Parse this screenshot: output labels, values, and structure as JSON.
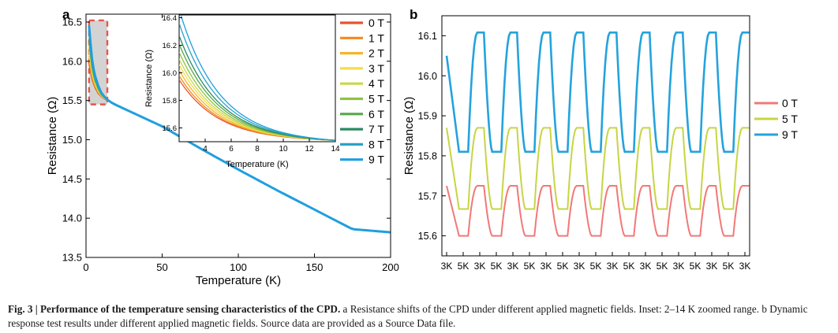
{
  "colors": {
    "0 T": "#e8532e",
    "1 T": "#f28a1d",
    "2 T": "#f4b62a",
    "3 T": "#f1dd4b",
    "4 T": "#c9d848",
    "5 T": "#8fc244",
    "6 T": "#55a848",
    "7 T": "#2c8a60",
    "8 T": "#29a4c8",
    "9 T": "#1f9fde",
    "b_0T": "#f27878",
    "b_5T": "#c6d544",
    "b_9T": "#24a3dc",
    "highlight": "#e8564a"
  },
  "chart_data": [
    {
      "panel": "a",
      "type": "line",
      "xlabel": "Temperature (K)",
      "ylabel": "Resistance (Ω)",
      "xlim": [
        0,
        200
      ],
      "ylim": [
        13.5,
        16.6
      ],
      "xticks": [
        "0",
        "50",
        "100",
        "150",
        "200"
      ],
      "yticks": [
        "13.5",
        "14.0",
        "14.5",
        "15.0",
        "15.5",
        "16.0",
        "16.5"
      ],
      "legend": [
        "0 T",
        "1 T",
        "2 T",
        "3 T",
        "4 T",
        "5 T",
        "6 T",
        "7 T",
        "8 T",
        "9 T"
      ],
      "legend_position": "top-right",
      "highlight_box": {
        "x_range": [
          2,
          14
        ],
        "y_range": [
          15.45,
          16.52
        ]
      },
      "curve": {
        "x": [
          2,
          3,
          4,
          5,
          6,
          8,
          10,
          12,
          14,
          17,
          20,
          30,
          50,
          75,
          100,
          125,
          150,
          175,
          200
        ],
        "y_0T": [
          15.96,
          15.86,
          15.77,
          15.71,
          15.66,
          15.59,
          15.55,
          15.52,
          15.5,
          15.47,
          15.44,
          15.35,
          15.17,
          14.89,
          14.62,
          14.36,
          14.11,
          13.86,
          13.82
        ],
        "y_9T": [
          16.45,
          16.22,
          16.02,
          15.9,
          15.81,
          15.69,
          15.6,
          15.55,
          15.51,
          15.47,
          15.44,
          15.35,
          15.17,
          14.89,
          14.62,
          14.36,
          14.11,
          13.86,
          13.82
        ]
      },
      "inset": {
        "xlabel": "Temperature (K)",
        "ylabel": "Resistance (Ω)",
        "xlim": [
          2,
          14
        ],
        "ylim": [
          15.5,
          16.42
        ],
        "xticks": [
          "4",
          "6",
          "8",
          "10",
          "12",
          "14"
        ],
        "yticks": [
          "15.6",
          "15.8",
          "16.0",
          "16.2",
          "16.4"
        ],
        "start_values": [
          15.95,
          15.98,
          16.02,
          16.06,
          16.1,
          16.15,
          16.21,
          16.27,
          16.36,
          16.46
        ],
        "end_value": 15.51
      }
    },
    {
      "panel": "b",
      "type": "line",
      "xlabel": "",
      "ylabel": "Resistance (Ω)",
      "ylim": [
        15.55,
        16.15
      ],
      "yticks": [
        "15.6",
        "15.7",
        "15.8",
        "15.9",
        "16.0",
        "16.1"
      ],
      "xticks": [
        "3K",
        "5K",
        "3K",
        "5K",
        "3K",
        "5K",
        "3K",
        "5K",
        "3K",
        "5K",
        "3K",
        "5K",
        "3K",
        "5K",
        "3K",
        "5K",
        "3K",
        "5K",
        "3K"
      ],
      "legend": [
        "0 T",
        "5 T",
        "9 T"
      ],
      "legend_position": "right",
      "cycles": 9,
      "series": [
        {
          "name": "0 T",
          "high": 15.725,
          "low": 15.6
        },
        {
          "name": "5 T",
          "high": 15.87,
          "low": 15.667
        },
        {
          "name": "9 T",
          "high": 16.108,
          "low": 15.81,
          "initial": 16.05
        }
      ]
    }
  ],
  "panel_labels": {
    "a": "a",
    "b": "b"
  },
  "caption": {
    "lead": "Fig. 3 | ",
    "title": "Performance of the temperature sensing characteristics of the CPD.",
    "text": " a Resistance shifts of the CPD under different applied magnetic fields. Inset: 2–14 K zoomed range. b Dynamic response test results under different applied magnetic fields. Source data are provided as a Source Data file."
  }
}
